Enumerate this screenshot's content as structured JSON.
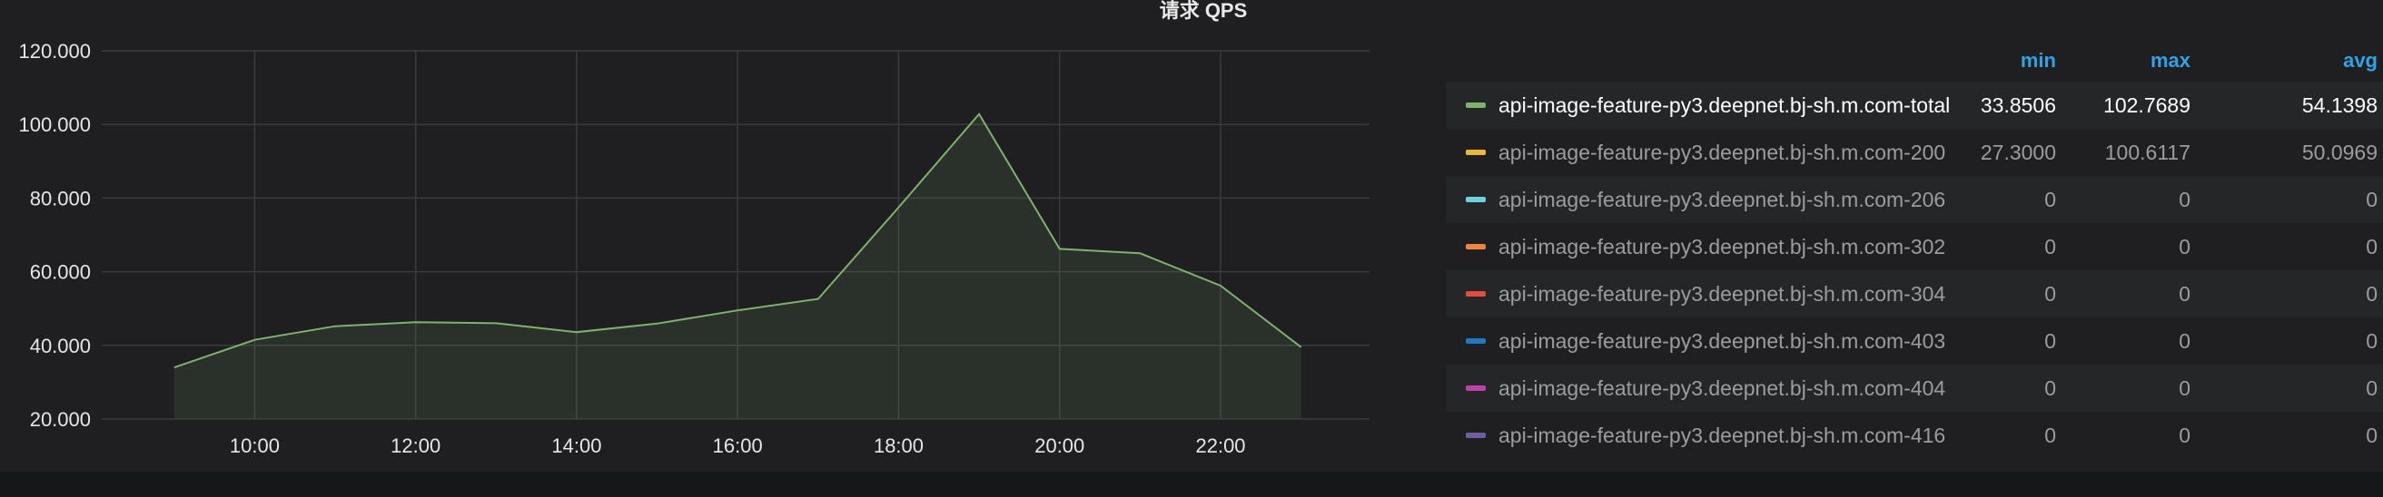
{
  "panel": {
    "title": "请求 QPS"
  },
  "chart_data": {
    "type": "area",
    "title": "请求 QPS",
    "xlabel": "",
    "ylabel": "",
    "x_ticks": [
      "10:00",
      "12:00",
      "14:00",
      "16:00",
      "18:00",
      "20:00",
      "22:00"
    ],
    "y_ticks": [
      "20.000",
      "40.000",
      "60.000",
      "80.000",
      "100.000",
      "120.000"
    ],
    "ylim": [
      20,
      120
    ],
    "xlim_hours": [
      8.1,
      23.85
    ],
    "grid": true,
    "series": [
      {
        "name": "api-image-feature-py3.deepnet.bj-sh.m.com-total",
        "color": "#7eb26d",
        "x": [
          9,
          10,
          11,
          12,
          13,
          14,
          15,
          16,
          17,
          18,
          19,
          20,
          21,
          22,
          23
        ],
        "values": [
          34,
          41.5,
          45.2,
          46.3,
          46,
          43.6,
          45.9,
          49.5,
          52.6,
          77.5,
          102.8,
          66.2,
          65,
          56.2,
          39.5
        ]
      }
    ]
  },
  "legend": {
    "headers": {
      "min": "min",
      "max": "max",
      "avg": "avg"
    },
    "rows": [
      {
        "name": "api-image-feature-py3.deepnet.bj-sh.m.com-total",
        "color": "#7eb26d",
        "min": "33.8506",
        "max": "102.7689",
        "avg": "54.1398"
      },
      {
        "name": "api-image-feature-py3.deepnet.bj-sh.m.com-200",
        "color": "#eab839",
        "min": "27.3000",
        "max": "100.6117",
        "avg": "50.0969"
      },
      {
        "name": "api-image-feature-py3.deepnet.bj-sh.m.com-206",
        "color": "#6ed0e0",
        "min": "0",
        "max": "0",
        "avg": "0"
      },
      {
        "name": "api-image-feature-py3.deepnet.bj-sh.m.com-302",
        "color": "#ef843c",
        "min": "0",
        "max": "0",
        "avg": "0"
      },
      {
        "name": "api-image-feature-py3.deepnet.bj-sh.m.com-304",
        "color": "#e24d42",
        "min": "0",
        "max": "0",
        "avg": "0"
      },
      {
        "name": "api-image-feature-py3.deepnet.bj-sh.m.com-403",
        "color": "#1f78c1",
        "min": "0",
        "max": "0",
        "avg": "0"
      },
      {
        "name": "api-image-feature-py3.deepnet.bj-sh.m.com-404",
        "color": "#ba43a9",
        "min": "0",
        "max": "0",
        "avg": "0"
      },
      {
        "name": "api-image-feature-py3.deepnet.bj-sh.m.com-416",
        "color": "#705da0",
        "min": "0",
        "max": "0",
        "avg": "0"
      }
    ]
  }
}
